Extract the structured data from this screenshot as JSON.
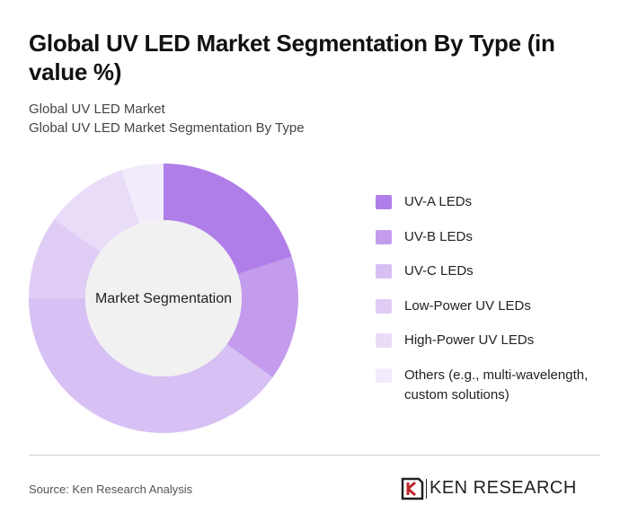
{
  "chart_data": {
    "type": "donut",
    "title": "Global UV LED Market Segmentation By Type (in value %)",
    "subtitle": [
      "Global UV LED Market",
      "Global UV LED Market Segmentation By Type"
    ],
    "center_label": "Market Segmentation",
    "categories": [
      "UV-A LEDs",
      "UV-B LEDs",
      "UV-C LEDs",
      "Low-Power UV LEDs",
      "High-Power UV LEDs",
      "Others (e.g., multi-wavelength, custom solutions)"
    ],
    "values": [
      20,
      15,
      40,
      10,
      10,
      5
    ],
    "colors": [
      "#b07ee8",
      "#c39ced",
      "#d7c0f3",
      "#dfcdf5",
      "#e8dcf8",
      "#f2ebfb"
    ],
    "source": "Source: Ken Research Analysis",
    "brand": "KEN RESEARCH"
  }
}
